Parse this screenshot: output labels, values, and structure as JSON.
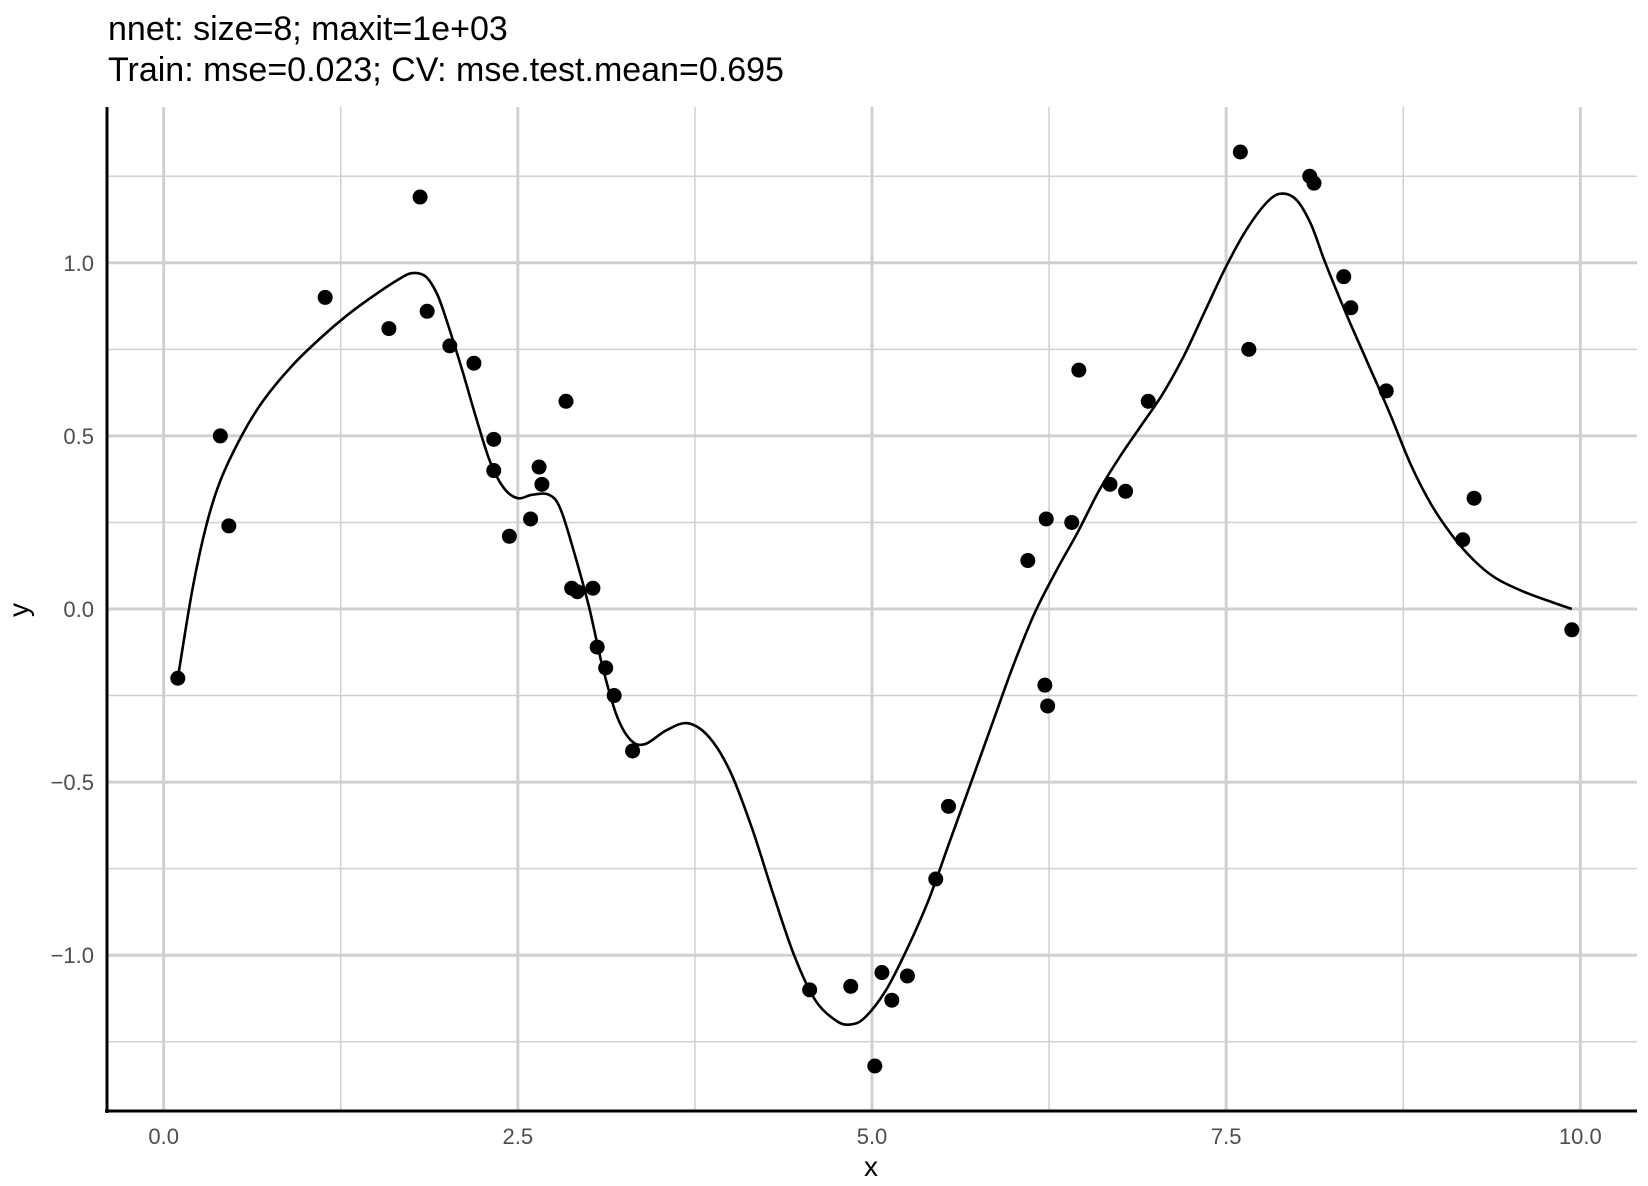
{
  "chart_data": {
    "type": "scatter",
    "title": "nnet: size=8; maxit=1e+03",
    "subtitle": "Train: mse=0.023; CV: mse.test.mean=0.695",
    "xlabel": "x",
    "ylabel": "y",
    "xlim": [
      -0.4,
      10.4
    ],
    "ylim": [
      -1.45,
      1.45
    ],
    "x_ticks": [
      0.0,
      2.5,
      5.0,
      7.5,
      10.0
    ],
    "x_tick_labels": [
      "0.0",
      "2.5",
      "5.0",
      "7.5",
      "10.0"
    ],
    "y_ticks": [
      -1.0,
      -0.5,
      0.0,
      0.5,
      1.0
    ],
    "y_tick_labels": [
      "−1.0",
      "−0.5",
      "0.0",
      "0.5",
      "1.0"
    ],
    "grid": true,
    "points": [
      [
        0.1,
        -0.2
      ],
      [
        0.4,
        0.5
      ],
      [
        0.46,
        0.24
      ],
      [
        1.14,
        0.9
      ],
      [
        1.59,
        0.81
      ],
      [
        1.81,
        1.19
      ],
      [
        1.86,
        0.86
      ],
      [
        2.02,
        0.76
      ],
      [
        2.19,
        0.71
      ],
      [
        2.33,
        0.49
      ],
      [
        2.33,
        0.4
      ],
      [
        2.44,
        0.21
      ],
      [
        2.59,
        0.26
      ],
      [
        2.65,
        0.41
      ],
      [
        2.67,
        0.36
      ],
      [
        2.84,
        0.6
      ],
      [
        2.88,
        0.06
      ],
      [
        2.92,
        0.05
      ],
      [
        3.03,
        0.06
      ],
      [
        3.06,
        -0.11
      ],
      [
        3.12,
        -0.17
      ],
      [
        3.18,
        -0.25
      ],
      [
        3.31,
        -0.41
      ],
      [
        4.56,
        -1.1
      ],
      [
        4.85,
        -1.09
      ],
      [
        5.02,
        -1.32
      ],
      [
        5.07,
        -1.05
      ],
      [
        5.14,
        -1.13
      ],
      [
        5.25,
        -1.06
      ],
      [
        5.45,
        -0.78
      ],
      [
        5.54,
        -0.57
      ],
      [
        6.1,
        0.14
      ],
      [
        6.23,
        0.26
      ],
      [
        6.22,
        -0.22
      ],
      [
        6.24,
        -0.28
      ],
      [
        6.41,
        0.25
      ],
      [
        6.46,
        0.69
      ],
      [
        6.68,
        0.36
      ],
      [
        6.79,
        0.34
      ],
      [
        6.95,
        0.6
      ],
      [
        7.6,
        1.32
      ],
      [
        7.66,
        0.75
      ],
      [
        8.09,
        1.25
      ],
      [
        8.12,
        1.23
      ],
      [
        8.33,
        0.96
      ],
      [
        8.38,
        0.87
      ],
      [
        8.63,
        0.63
      ],
      [
        9.17,
        0.2
      ],
      [
        9.25,
        0.32
      ],
      [
        9.94,
        -0.06
      ]
    ],
    "fit_line": [
      [
        0.1,
        -0.2
      ],
      [
        0.2,
        0.05
      ],
      [
        0.3,
        0.24
      ],
      [
        0.4,
        0.37
      ],
      [
        0.55,
        0.5
      ],
      [
        0.7,
        0.6
      ],
      [
        0.9,
        0.7
      ],
      [
        1.1,
        0.78
      ],
      [
        1.3,
        0.85
      ],
      [
        1.5,
        0.91
      ],
      [
        1.65,
        0.95
      ],
      [
        1.75,
        0.97
      ],
      [
        1.85,
        0.96
      ],
      [
        1.93,
        0.91
      ],
      [
        2.0,
        0.83
      ],
      [
        2.1,
        0.7
      ],
      [
        2.2,
        0.56
      ],
      [
        2.3,
        0.43
      ],
      [
        2.4,
        0.35
      ],
      [
        2.5,
        0.32
      ],
      [
        2.6,
        0.33
      ],
      [
        2.72,
        0.33
      ],
      [
        2.8,
        0.29
      ],
      [
        2.9,
        0.16
      ],
      [
        3.0,
        0.01
      ],
      [
        3.1,
        -0.17
      ],
      [
        3.2,
        -0.31
      ],
      [
        3.3,
        -0.38
      ],
      [
        3.4,
        -0.39
      ],
      [
        3.55,
        -0.35
      ],
      [
        3.7,
        -0.33
      ],
      [
        3.85,
        -0.37
      ],
      [
        4.0,
        -0.47
      ],
      [
        4.15,
        -0.63
      ],
      [
        4.3,
        -0.82
      ],
      [
        4.45,
        -1.0
      ],
      [
        4.6,
        -1.13
      ],
      [
        4.75,
        -1.19
      ],
      [
        4.85,
        -1.2
      ],
      [
        4.95,
        -1.18
      ],
      [
        5.1,
        -1.1
      ],
      [
        5.25,
        -0.98
      ],
      [
        5.4,
        -0.84
      ],
      [
        5.55,
        -0.67
      ],
      [
        5.7,
        -0.5
      ],
      [
        5.85,
        -0.33
      ],
      [
        6.0,
        -0.16
      ],
      [
        6.15,
        -0.01
      ],
      [
        6.3,
        0.11
      ],
      [
        6.45,
        0.22
      ],
      [
        6.6,
        0.34
      ],
      [
        6.75,
        0.44
      ],
      [
        6.9,
        0.53
      ],
      [
        7.05,
        0.62
      ],
      [
        7.2,
        0.73
      ],
      [
        7.35,
        0.86
      ],
      [
        7.5,
        0.99
      ],
      [
        7.65,
        1.1
      ],
      [
        7.8,
        1.18
      ],
      [
        7.9,
        1.2
      ],
      [
        8.0,
        1.18
      ],
      [
        8.1,
        1.11
      ],
      [
        8.2,
        1.0
      ],
      [
        8.35,
        0.85
      ],
      [
        8.5,
        0.71
      ],
      [
        8.65,
        0.57
      ],
      [
        8.8,
        0.42
      ],
      [
        8.95,
        0.3
      ],
      [
        9.1,
        0.21
      ],
      [
        9.25,
        0.14
      ],
      [
        9.4,
        0.09
      ],
      [
        9.6,
        0.05
      ],
      [
        9.8,
        0.02
      ],
      [
        9.94,
        0.0
      ]
    ]
  }
}
